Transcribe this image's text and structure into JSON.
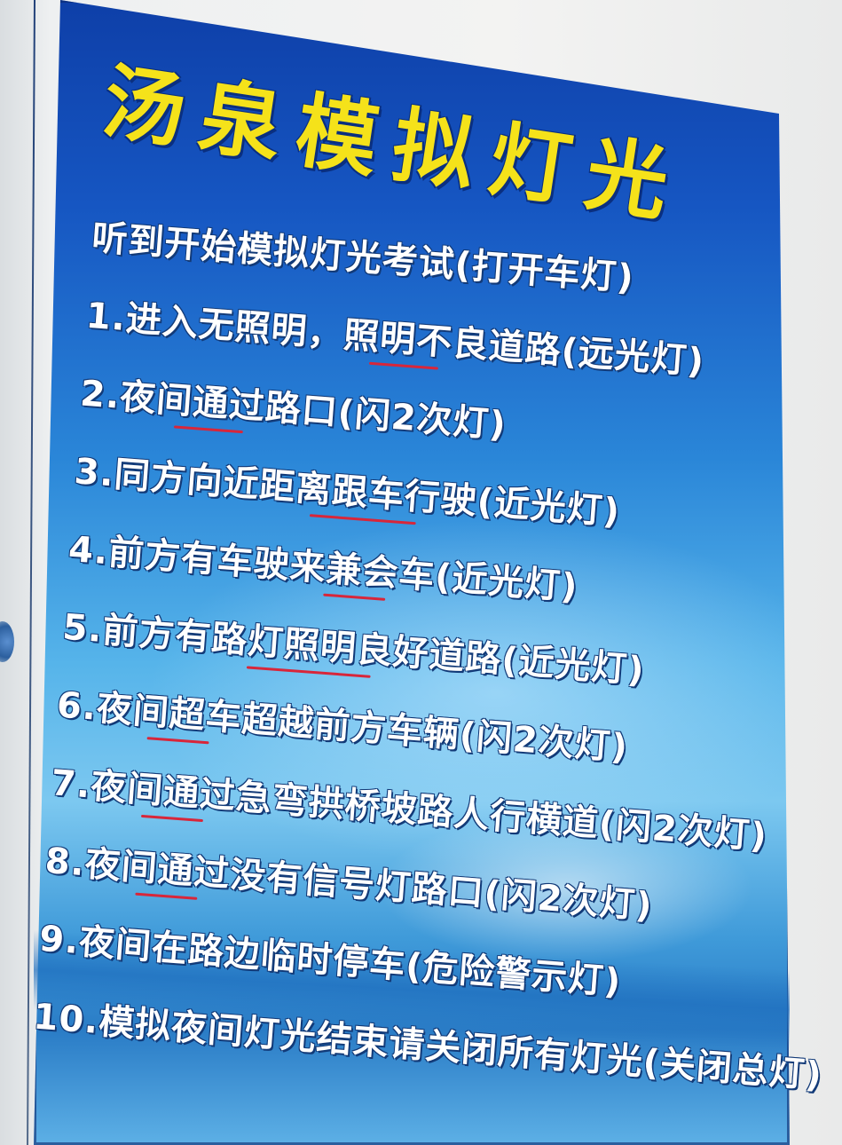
{
  "title": "汤泉模拟灯光",
  "intro": "听到开始模拟灯光考试(打开车灯)",
  "items": [
    "1.进入无照明，照明不良道路(远光灯)",
    "2.夜间通过路口(闪2次灯)",
    "3.同方向近距离跟车行驶(近光灯)",
    "4.前方有车驶来兼会车(近光灯)",
    "5.前方有路灯照明良好道路(近光灯)",
    "6.夜间超车超越前方车辆(闪2次灯)",
    "7.夜间通过急弯拱桥坡路人行横道(闪2次灯)",
    "8.夜间通过没有信号灯路口(闪2次灯)",
    "9.夜间在路边临时停车(危险警示灯)",
    "10.模拟夜间灯光结束请关闭所有灯光(关闭总灯)"
  ],
  "colors": {
    "title": "#f5e21a",
    "text": "#ffffff",
    "underline": "#d8263a",
    "board_top": "#0e3fa8"
  }
}
